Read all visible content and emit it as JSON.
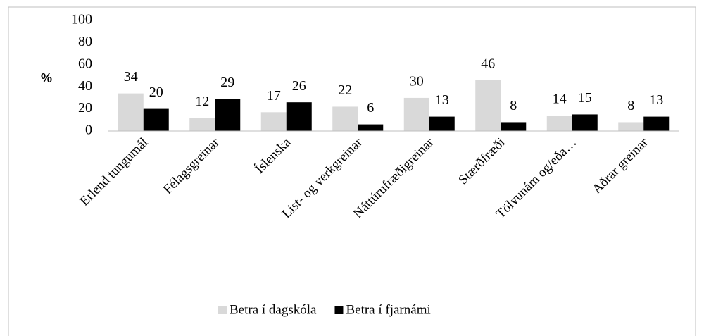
{
  "chart_data": {
    "type": "bar",
    "ylabel": "%",
    "categories": [
      "Erlend tungumál",
      "Félagsgreinar",
      "Íslenska",
      "List- og verkgreinar",
      "Náttúrufræðigreinar",
      "Stærðfræði",
      "Tölvunám og/eða…",
      "Aðrar greinar"
    ],
    "series": [
      {
        "name": "Betra í dagskóla",
        "color": "#d9d9d9",
        "values": [
          34,
          12,
          17,
          22,
          30,
          46,
          14,
          8
        ]
      },
      {
        "name": "Betra í fjarnámi",
        "color": "#000000",
        "values": [
          20,
          29,
          26,
          6,
          13,
          8,
          15,
          13
        ]
      }
    ],
    "ylim": [
      0,
      100
    ],
    "yticks": [
      0,
      20,
      40,
      60,
      80,
      100
    ],
    "grid": false,
    "legend": "bottom"
  }
}
